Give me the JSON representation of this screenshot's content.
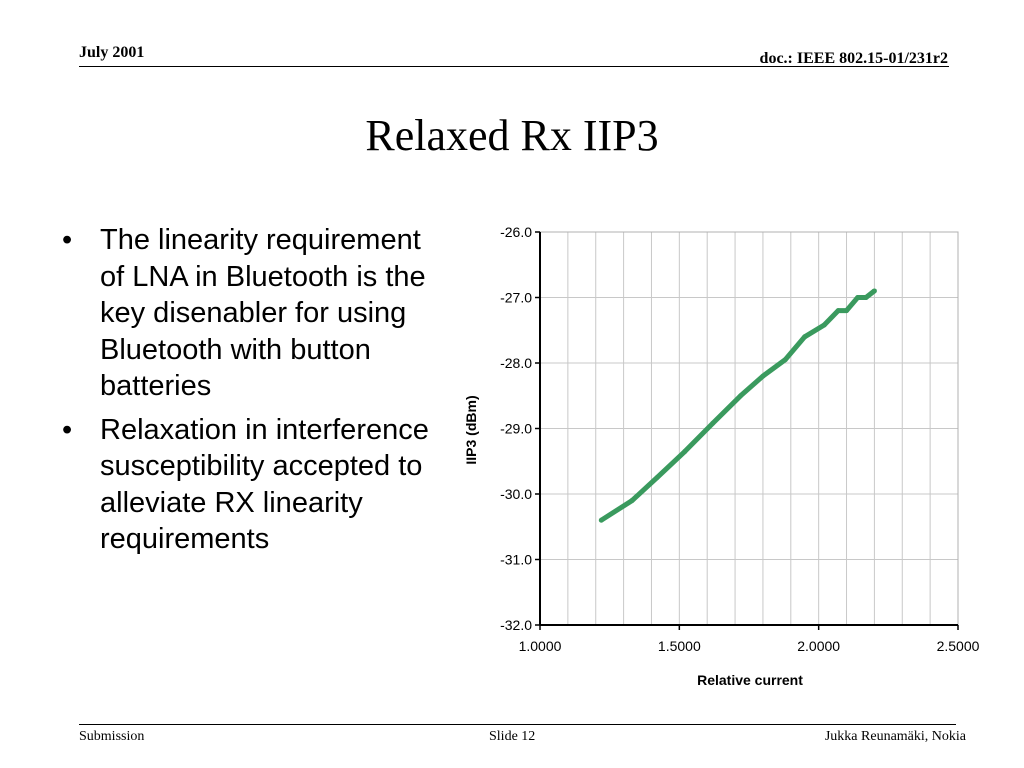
{
  "header": {
    "date": "July 2001",
    "doc_id": "doc.: IEEE 802.15-01/231r2"
  },
  "slide": {
    "title": "Relaxed Rx IIP3",
    "bullets": [
      "The linearity requirement of LNA in Bluetooth is the key disenabler for using Bluetooth with button batteries",
      "Relaxation in interference susceptibility accepted to alleviate RX linearity requirements"
    ]
  },
  "footer": {
    "left": "Submission",
    "center": "Slide 12",
    "right": "Jukka Reunamäki, Nokia"
  },
  "chart_data": {
    "type": "line",
    "title": "",
    "xlabel": "Relative current",
    "ylabel": "IIP3 (dBm)",
    "xlim": [
      1.0,
      2.5
    ],
    "ylim": [
      -32.0,
      -26.0
    ],
    "x_ticks": [
      "1.0000",
      "1.5000",
      "2.0000",
      "2.5000"
    ],
    "x_tick_values": [
      1.0,
      1.5,
      2.0,
      2.5
    ],
    "y_ticks": [
      "-26.0",
      "-27.0",
      "-28.0",
      "-29.0",
      "-30.0",
      "-31.0",
      "-32.0"
    ],
    "y_tick_values": [
      -26.0,
      -27.0,
      -28.0,
      -29.0,
      -30.0,
      -31.0,
      -32.0
    ],
    "grid": true,
    "series": [
      {
        "color": "#3a9a5e",
        "x": [
          1.22,
          1.33,
          1.42,
          1.52,
          1.62,
          1.72,
          1.8,
          1.88,
          1.95,
          2.02,
          2.07,
          2.1,
          2.14,
          2.17,
          2.2
        ],
        "y": [
          -30.4,
          -30.1,
          -29.75,
          -29.35,
          -28.92,
          -28.5,
          -28.2,
          -27.95,
          -27.6,
          -27.42,
          -27.2,
          -27.2,
          -27.0,
          -27.0,
          -26.9
        ]
      }
    ]
  }
}
